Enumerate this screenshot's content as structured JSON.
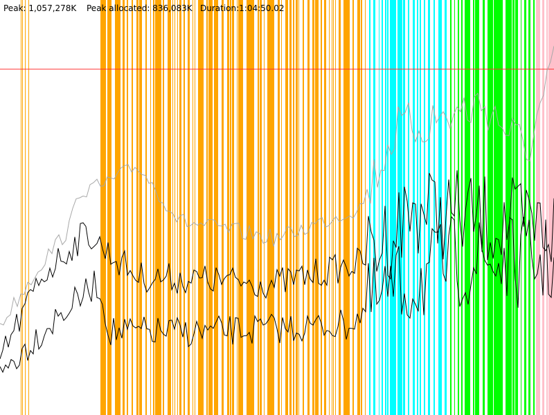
{
  "header": {
    "peak": "Peak: 1,057,278K",
    "peak_allocated": "Peak allocated: 836,083K",
    "duration": "Duration:1:04:50.02"
  }
}
